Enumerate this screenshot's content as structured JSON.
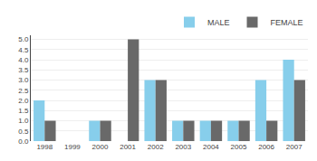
{
  "chart_data": {
    "type": "bar",
    "categories": [
      "1998",
      "1999",
      "2000",
      "2001",
      "2002",
      "2003",
      "2004",
      "2005",
      "2006",
      "2007"
    ],
    "series": [
      {
        "name": "MALE",
        "color": "#87CEEB",
        "values": [
          2,
          0,
          1,
          0,
          3,
          1,
          1,
          1,
          3,
          4
        ]
      },
      {
        "name": "FEMALE",
        "color": "#696969",
        "values": [
          1,
          0,
          1,
          5,
          3,
          1,
          1,
          1,
          1,
          3
        ]
      }
    ],
    "ylim": [
      0,
      5.2
    ],
    "yticks": [
      {
        "value": 0,
        "label": "0.0"
      },
      0.5,
      {
        "value": 1,
        "label": "1.0"
      },
      1.5,
      {
        "value": 2,
        "label": "2.0"
      },
      2.5,
      {
        "value": 3,
        "label": "3.0"
      },
      3.5,
      {
        "value": 4,
        "label": "4.0"
      },
      4.5,
      {
        "value": 5,
        "label": "5.0"
      }
    ],
    "grid": true,
    "legend": "upper right"
  }
}
